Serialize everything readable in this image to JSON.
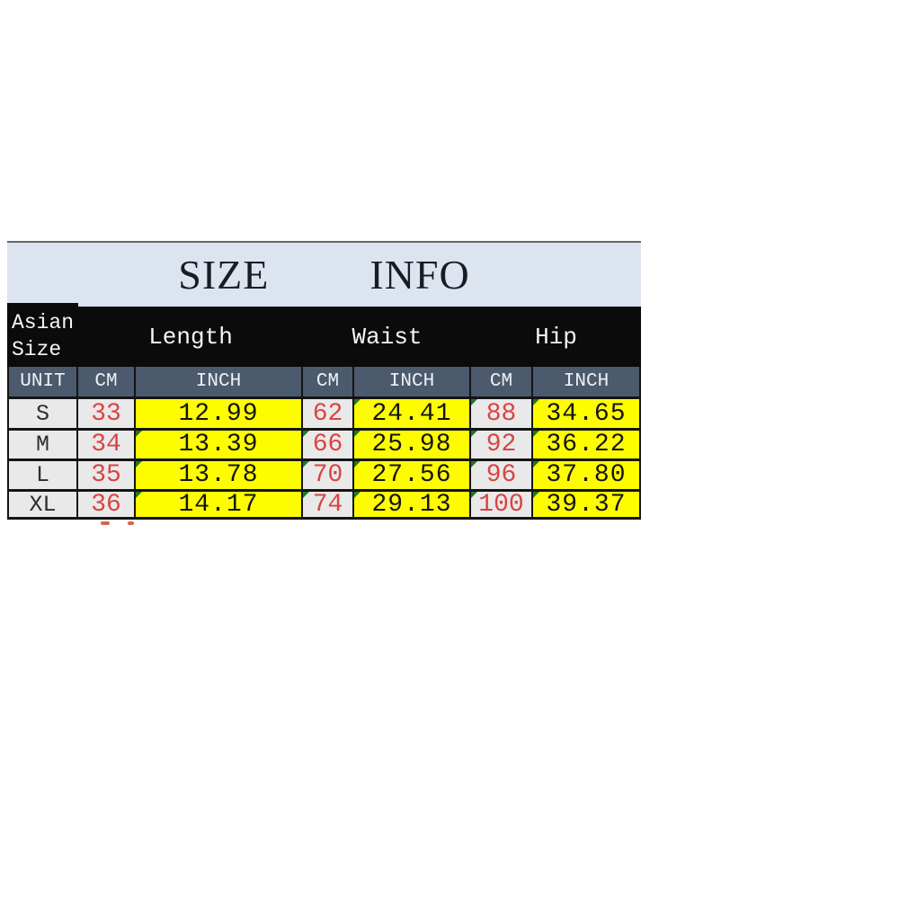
{
  "chart_data": {
    "type": "table",
    "title": "SIZE INFO",
    "corner_header": [
      "Asian",
      "Size"
    ],
    "group_headers": [
      "Length",
      "Waist",
      "Hip"
    ],
    "unit_headers": [
      "UNIT",
      "CM",
      "INCH",
      "CM",
      "INCH",
      "CM",
      "INCH"
    ],
    "rows": [
      [
        "S",
        "33",
        "12.99",
        "62",
        "24.41",
        "88",
        "34.65"
      ],
      [
        "M",
        "34",
        "13.39",
        "66",
        "25.98",
        "92",
        "36.22"
      ],
      [
        "L",
        "35",
        "13.78",
        "70",
        "27.56",
        "96",
        "37.80"
      ],
      [
        "XL",
        "36",
        "14.17",
        "74",
        "29.13",
        "100",
        "39.37"
      ]
    ],
    "layout": "size chart table: sizes S-XL vs Length/Waist/Hip in CM and INCH"
  },
  "title": {
    "left": "SIZE",
    "right": "INFO"
  },
  "colors": {
    "title_background": "#dce4ef",
    "group_header_background": "#0b0b0b",
    "group_header_text": "#f5f5f5",
    "unit_row_background": "#4b5a6c",
    "unit_row_text": "#eef1f6",
    "gray_cell_background": "#e9e9e9",
    "inch_cell_background": "#fdfd00",
    "cm_value_text": "#d94444",
    "inch_value_text": "#141414",
    "grid_border": "#141414",
    "corner_marker_green": "#1f7a22"
  }
}
